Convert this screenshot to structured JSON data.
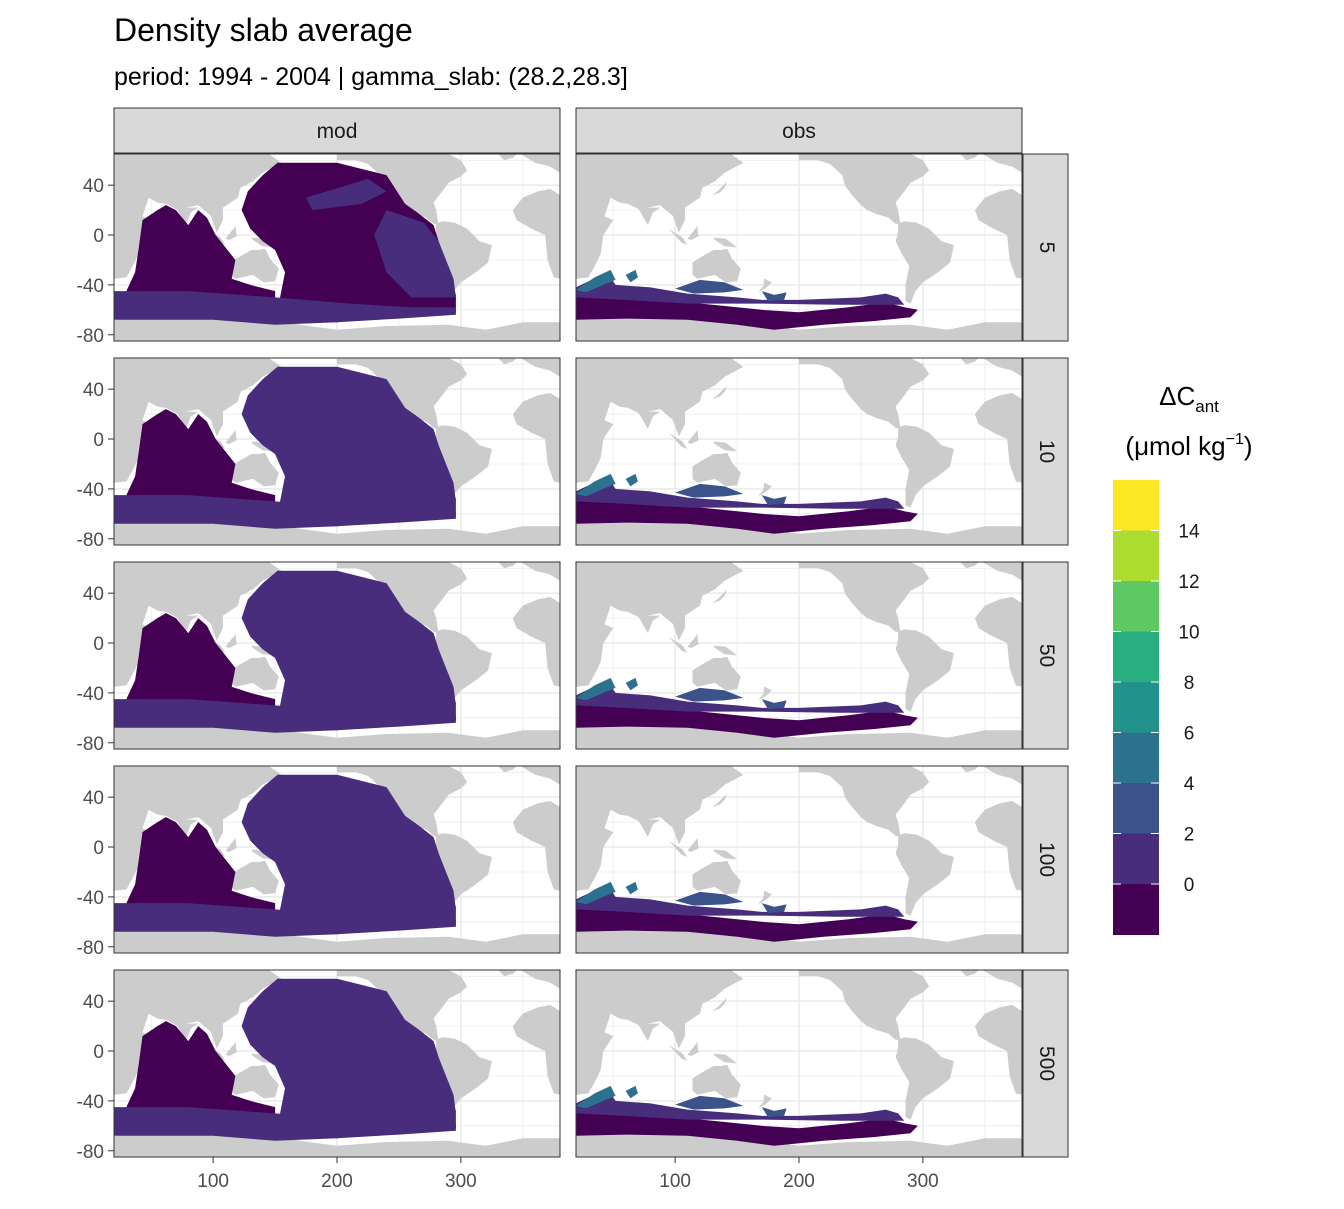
{
  "chart_data": {
    "type": "heatmap",
    "title": "Density slab average",
    "subtitle": "period: 1994 - 2004 | gamma_slab: (28.2,28.3]",
    "facet_columns": [
      "mod",
      "obs"
    ],
    "facet_rows": [
      "5",
      "10",
      "50",
      "100",
      "500"
    ],
    "x_ticks": [
      "100",
      "200",
      "300"
    ],
    "x_tick_values": [
      100,
      200,
      300
    ],
    "y_ticks": [
      "40",
      "0",
      "-40",
      "-80"
    ],
    "y_tick_values": [
      40,
      0,
      -40,
      -80
    ],
    "xlim": [
      20,
      380
    ],
    "ylim": [
      -85,
      65
    ],
    "grid": true,
    "land_color": "#cccccc",
    "legend": {
      "title_main": "ΔC",
      "title_sub": "ant",
      "title_unit": "(μmol kg",
      "title_exp": "−1",
      "title_close": ")",
      "position": "right",
      "labels": [
        "14",
        "12",
        "10",
        "8",
        "6",
        "4",
        "2",
        "0"
      ],
      "label_values": [
        14,
        12,
        10,
        8,
        6,
        4,
        2,
        0
      ],
      "bins": [
        {
          "min": -2,
          "max": 0,
          "color": "#440154"
        },
        {
          "min": 0,
          "max": 2,
          "color": "#472d7b"
        },
        {
          "min": 2,
          "max": 4,
          "color": "#3b528b"
        },
        {
          "min": 4,
          "max": 6,
          "color": "#2c728e"
        },
        {
          "min": 6,
          "max": 8,
          "color": "#21918c"
        },
        {
          "min": 8,
          "max": 10,
          "color": "#28ae80"
        },
        {
          "min": 10,
          "max": 12,
          "color": "#5ec962"
        },
        {
          "min": 12,
          "max": 14,
          "color": "#addc30"
        },
        {
          "min": 14,
          "max": 16,
          "color": "#fde725"
        }
      ]
    }
  }
}
